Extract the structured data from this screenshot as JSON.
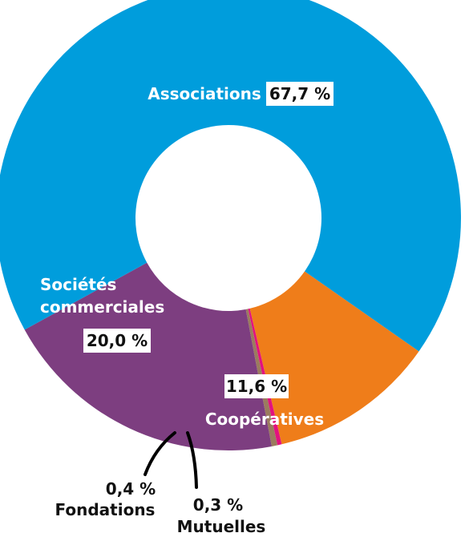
{
  "chart_data": {
    "type": "pie",
    "variant": "donut",
    "slices": [
      {
        "label": "Associations",
        "value": 67.7,
        "value_label": "67,7 %",
        "color": "#009DDC"
      },
      {
        "label": "Coopératives",
        "value": 11.6,
        "value_label": "11,6 %",
        "color": "#EF7D1A"
      },
      {
        "label": "Mutuelles",
        "value": 0.3,
        "value_label": "0,3 %",
        "color": "#E2127E"
      },
      {
        "label": "Fondations",
        "value": 0.4,
        "value_label": "0,4 %",
        "color": "#9B7B5E"
      },
      {
        "label": "Sociétés commerciales",
        "value": 20.0,
        "value_label": "20,0 %",
        "color": "#7D3E80"
      }
    ]
  }
}
